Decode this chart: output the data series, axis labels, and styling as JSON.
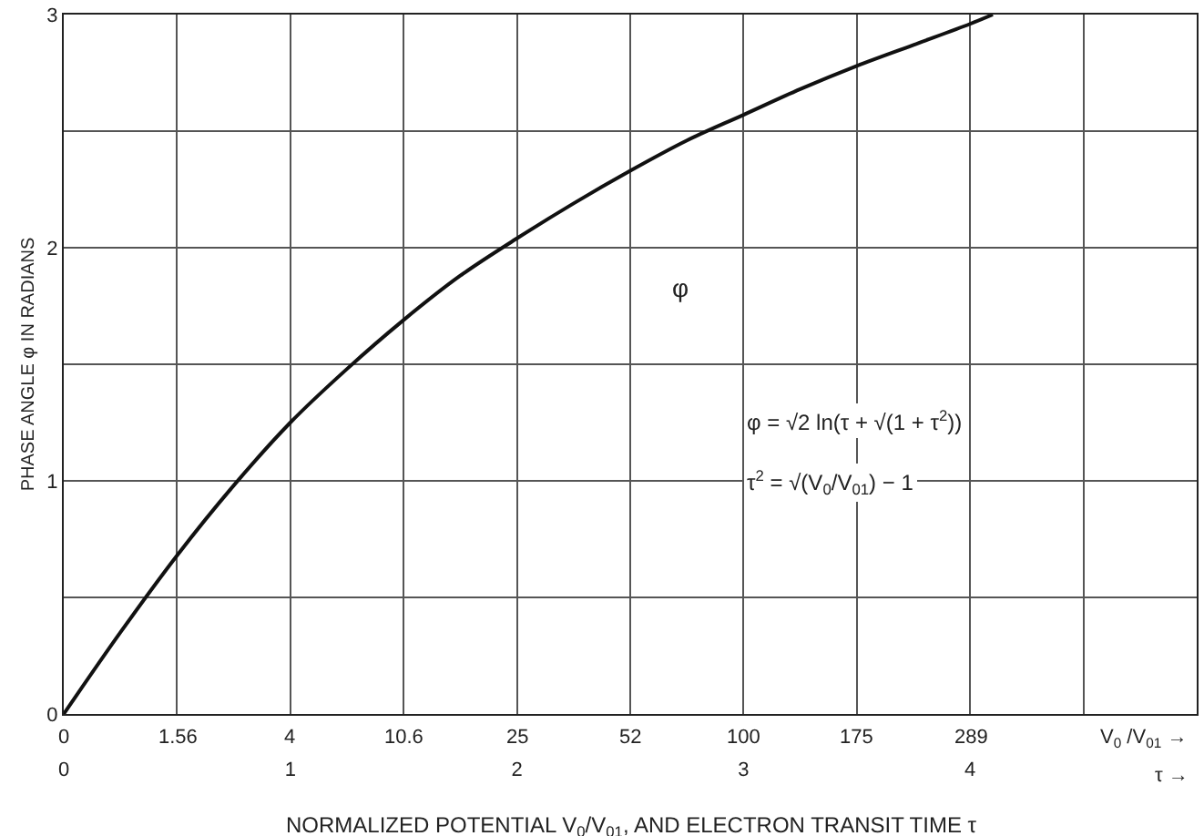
{
  "chart_data": {
    "type": "line",
    "xlabel": "NORMALIZED POTENTIAL V$_{0}$/V$_{01}$, AND ELECTRON TRANSIT TIME τ",
    "ylabel": "PHASE ANGLE φ IN RADIANS",
    "x": [
      0,
      0.25,
      0.5,
      0.75,
      1,
      1.25,
      1.5,
      1.75,
      2,
      2.25,
      2.5,
      2.75,
      3,
      3.25,
      3.5,
      3.75,
      4,
      4.1
    ],
    "series": [
      {
        "color": "#111111",
        "values": [
          0,
          0.35,
          0.68,
          0.98,
          1.25,
          1.48,
          1.69,
          1.88,
          2.04,
          2.19,
          2.33,
          2.46,
          2.57,
          2.68,
          2.78,
          2.87,
          2.96,
          3.0
        ]
      }
    ],
    "xlim": [
      0,
      5
    ],
    "ylim": [
      0,
      3
    ],
    "xticks": [
      0,
      {
        "value": 0.5,
        "label": null
      },
      1,
      {
        "value": 1.5,
        "label": null
      },
      2,
      {
        "value": 2.5,
        "label": null
      },
      3,
      {
        "value": 3.5,
        "label": null
      },
      4,
      {
        "value": 4.5,
        "label": null
      }
    ],
    "yticks": [
      0,
      {
        "value": 0.5,
        "label": null
      },
      1,
      {
        "value": 1.5,
        "label": null
      },
      2,
      {
        "value": 2.5,
        "label": null
      },
      3
    ],
    "grid": true,
    "marker": "none",
    "line_style": "solid",
    "annotations": [
      "φ",
      "φ = √2 ln(τ + √(1 + τ$^{2}$))",
      "τ$^{2}$ = √(V$_{0}$/V$_{01}$) − 1",
      "0",
      "1.56",
      "4",
      "10.6",
      "25",
      "52",
      "100",
      "175",
      "289",
      "V$_{0}$ /V$_{01}$ →",
      "τ →"
    ]
  }
}
